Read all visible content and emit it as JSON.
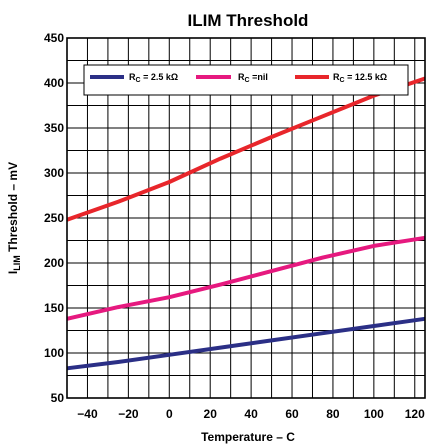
{
  "chart_data": {
    "type": "line",
    "title": "ILIM Threshold",
    "xlabel": "Temperature –  C",
    "ylabel_main": "I",
    "ylabel_sub": "LIM",
    "ylabel_rest": " Threshold – mV",
    "xlim": [
      -50,
      125
    ],
    "ylim": [
      50,
      450
    ],
    "x_ticks": [
      -40,
      -20,
      0,
      20,
      40,
      60,
      80,
      100,
      120
    ],
    "x_tick_labels": [
      "−40",
      "−20",
      "0",
      "20",
      "40",
      "60",
      "80",
      "100",
      "120"
    ],
    "y_ticks": [
      50,
      100,
      150,
      200,
      250,
      300,
      350,
      400,
      450
    ],
    "y_tick_labels": [
      "50",
      "100",
      "150",
      "200",
      "250",
      "300",
      "350",
      "400",
      "450"
    ],
    "grid": true,
    "legend_position": "top",
    "series": [
      {
        "name_main": "R",
        "name_sub": "C",
        "name_rest": " = 2.5 kΩ",
        "color": "#2b2f86",
        "x": [
          -50,
          -25,
          0,
          25,
          50,
          75,
          100,
          125
        ],
        "y": [
          83,
          90,
          98,
          106,
          114,
          122,
          130,
          138
        ]
      },
      {
        "name_main": "R",
        "name_sub": "C",
        "name_rest": " =nil",
        "color": "#e6197f",
        "x": [
          -50,
          -25,
          0,
          25,
          50,
          75,
          100,
          125
        ],
        "y": [
          138,
          151,
          162,
          176,
          191,
          206,
          219,
          228
        ]
      },
      {
        "name_main": "R",
        "name_sub": "C",
        "name_rest": " = 12.5 kΩ",
        "color": "#e8262b",
        "x": [
          -50,
          -25,
          0,
          25,
          50,
          75,
          100,
          125
        ],
        "y": [
          248,
          268,
          290,
          316,
          340,
          363,
          386,
          405
        ]
      }
    ]
  }
}
